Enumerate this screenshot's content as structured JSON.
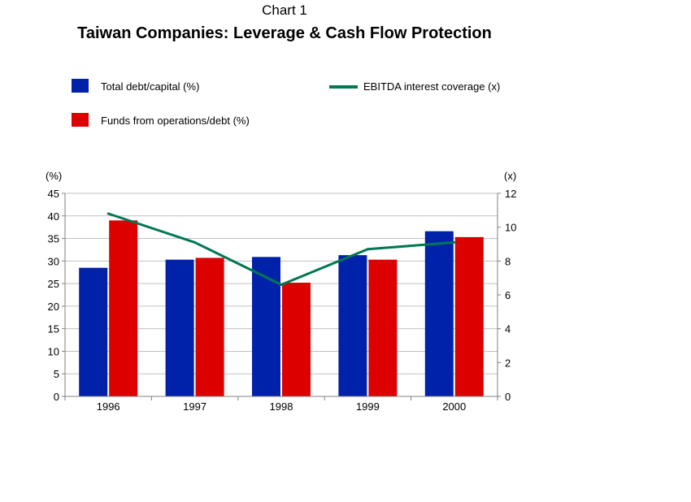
{
  "header": {
    "chart_number": "Chart 1",
    "title": "Taiwan Companies: Leverage & Cash Flow Protection"
  },
  "chart_data": {
    "type": "bar",
    "title": "Taiwan Companies: Leverage & Cash Flow Protection",
    "categories": [
      "1996",
      "1997",
      "1998",
      "1999",
      "2000"
    ],
    "series": [
      {
        "name": "Total debt/capital (%)",
        "type": "bar",
        "axis": "left",
        "color": "#0022aa",
        "values": [
          28.5,
          30.3,
          30.9,
          31.3,
          36.6
        ]
      },
      {
        "name": "Funds from operations/debt (%)",
        "type": "bar",
        "axis": "left",
        "color": "#dd0000",
        "values": [
          39.0,
          30.7,
          25.2,
          30.3,
          35.3
        ]
      },
      {
        "name": "EBITDA interest coverage (x)",
        "type": "line",
        "axis": "right",
        "color": "#007755",
        "values": [
          10.8,
          9.1,
          6.6,
          8.7,
          9.1
        ]
      }
    ],
    "y_left": {
      "label": "(%)",
      "ylim": [
        0,
        45
      ],
      "ticks": [
        0,
        5,
        10,
        15,
        20,
        25,
        30,
        35,
        40,
        45
      ]
    },
    "y_right": {
      "label": "(x)",
      "ylim": [
        0,
        12
      ],
      "ticks": [
        0,
        2,
        4,
        6,
        8,
        10,
        12
      ]
    },
    "grid": true,
    "legend": "top"
  }
}
